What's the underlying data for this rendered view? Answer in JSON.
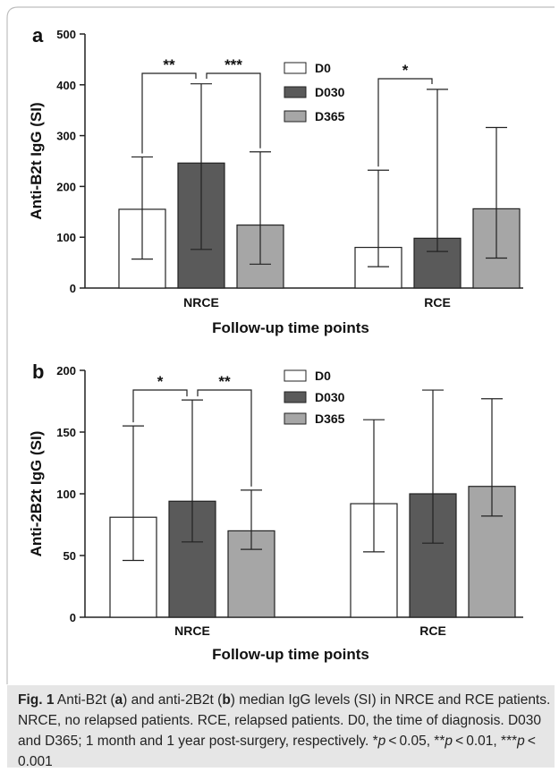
{
  "colors": {
    "D0": "#ffffff",
    "D030": "#5a5a5a",
    "D365": "#a6a6a6",
    "caption_bg": "#e6e6e6",
    "frame": "#bdbdbd"
  },
  "chart_data": [
    {
      "panel_label": "a",
      "type": "bar",
      "categories": [
        "NRCE",
        "RCE"
      ],
      "series": [
        {
          "name": "D0",
          "values": [
            155,
            80
          ],
          "error_low": [
            57,
            42
          ],
          "error_high": [
            258,
            232
          ]
        },
        {
          "name": "D030",
          "values": [
            246,
            98
          ],
          "error_low": [
            76,
            72
          ],
          "error_high": [
            402,
            391
          ]
        },
        {
          "name": "D365",
          "values": [
            124,
            156
          ],
          "error_low": [
            47,
            59
          ],
          "error_high": [
            268,
            316
          ]
        }
      ],
      "ylim": [
        0,
        500
      ],
      "yticks": [
        "0",
        "100",
        "200",
        "300",
        "400",
        "500"
      ],
      "xlabel": "Follow-up time points",
      "ylabel": "Anti-B2t IgG (SI)",
      "legend_position": "top-center",
      "significance": [
        {
          "category": "NRCE",
          "from": "D0",
          "to": "D030",
          "label": "**"
        },
        {
          "category": "NRCE",
          "from": "D030",
          "to": "D365",
          "label": "***"
        },
        {
          "category": "RCE",
          "from": "D0",
          "to": "D030",
          "label": "*"
        }
      ]
    },
    {
      "panel_label": "b",
      "type": "bar",
      "categories": [
        "NRCE",
        "RCE"
      ],
      "series": [
        {
          "name": "D0",
          "values": [
            81,
            92
          ],
          "error_low": [
            46,
            53
          ],
          "error_high": [
            155,
            160
          ]
        },
        {
          "name": "D030",
          "values": [
            94,
            100
          ],
          "error_low": [
            61,
            60
          ],
          "error_high": [
            176,
            184
          ]
        },
        {
          "name": "D365",
          "values": [
            70,
            106
          ],
          "error_low": [
            55,
            82
          ],
          "error_high": [
            103,
            177
          ]
        }
      ],
      "ylim": [
        0,
        200
      ],
      "yticks": [
        "0",
        "50",
        "100",
        "150",
        "200"
      ],
      "xlabel": "Follow-up time points",
      "ylabel": "Anti-2B2t IgG (SI)",
      "legend_position": "top-center",
      "significance": [
        {
          "category": "NRCE",
          "from": "D0",
          "to": "D030",
          "label": "*"
        },
        {
          "category": "NRCE",
          "from": "D030",
          "to": "D365",
          "label": "**"
        }
      ]
    }
  ],
  "caption": {
    "fig_label": "Fig. 1",
    "p1": "  Anti-B2t (",
    "a": "a",
    "p2": ") and anti-2B2t (",
    "b": "b",
    "p3": ") median IgG levels (SI) in NRCE and RCE patients. NRCE, no relapsed patients. RCE, relapsed patients. D0, the time of diagnosis. D030 and D365; 1 month and 1 year post-surgery, respectively. *",
    "p": "p",
    "p4": " < 0.05, **",
    "p5": " < 0.01, ***",
    "p6": " < 0.001"
  }
}
